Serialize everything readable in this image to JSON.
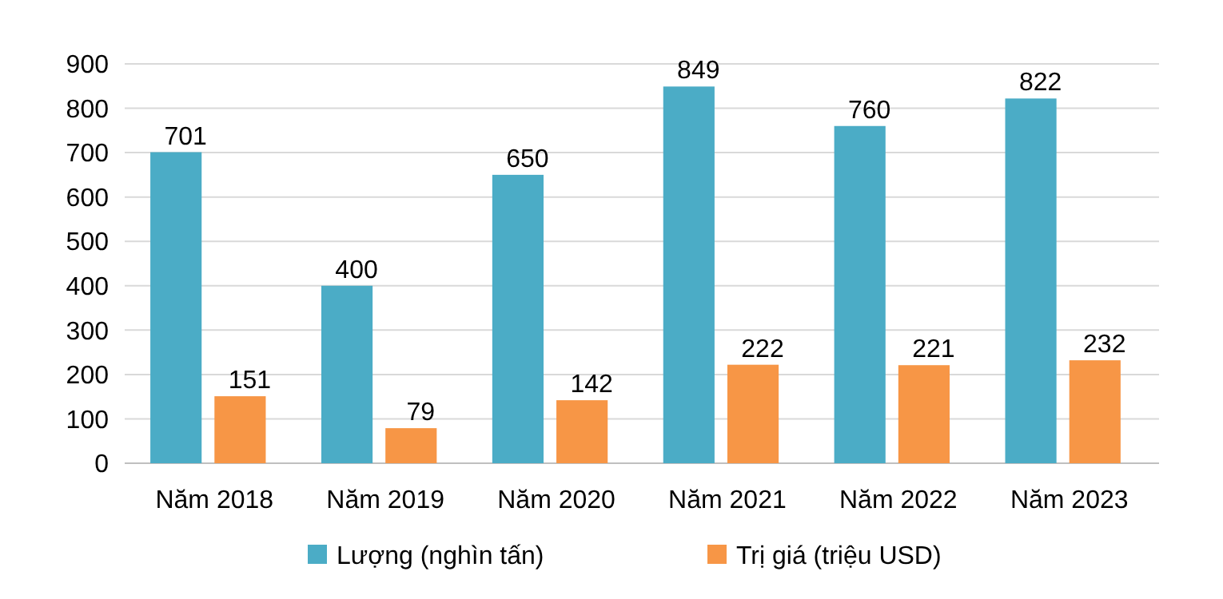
{
  "chart_data": {
    "type": "bar",
    "categories": [
      "Năm 2018",
      "Năm 2019",
      "Năm 2020",
      "Năm 2021",
      "Năm 2022",
      "Năm 2023"
    ],
    "series": [
      {
        "name": "Lượng (nghìn tấn)",
        "color": "#4bacc6",
        "values": [
          701,
          400,
          650,
          849,
          760,
          822
        ]
      },
      {
        "name": "Trị giá (triệu USD)",
        "color": "#f79646",
        "values": [
          151,
          79,
          142,
          222,
          221,
          232
        ]
      }
    ],
    "ylim": [
      0,
      900
    ],
    "yticks": [
      0,
      100,
      200,
      300,
      400,
      500,
      600,
      700,
      800,
      900
    ],
    "grid": "y",
    "legend": "bottom",
    "data_labels": true
  }
}
